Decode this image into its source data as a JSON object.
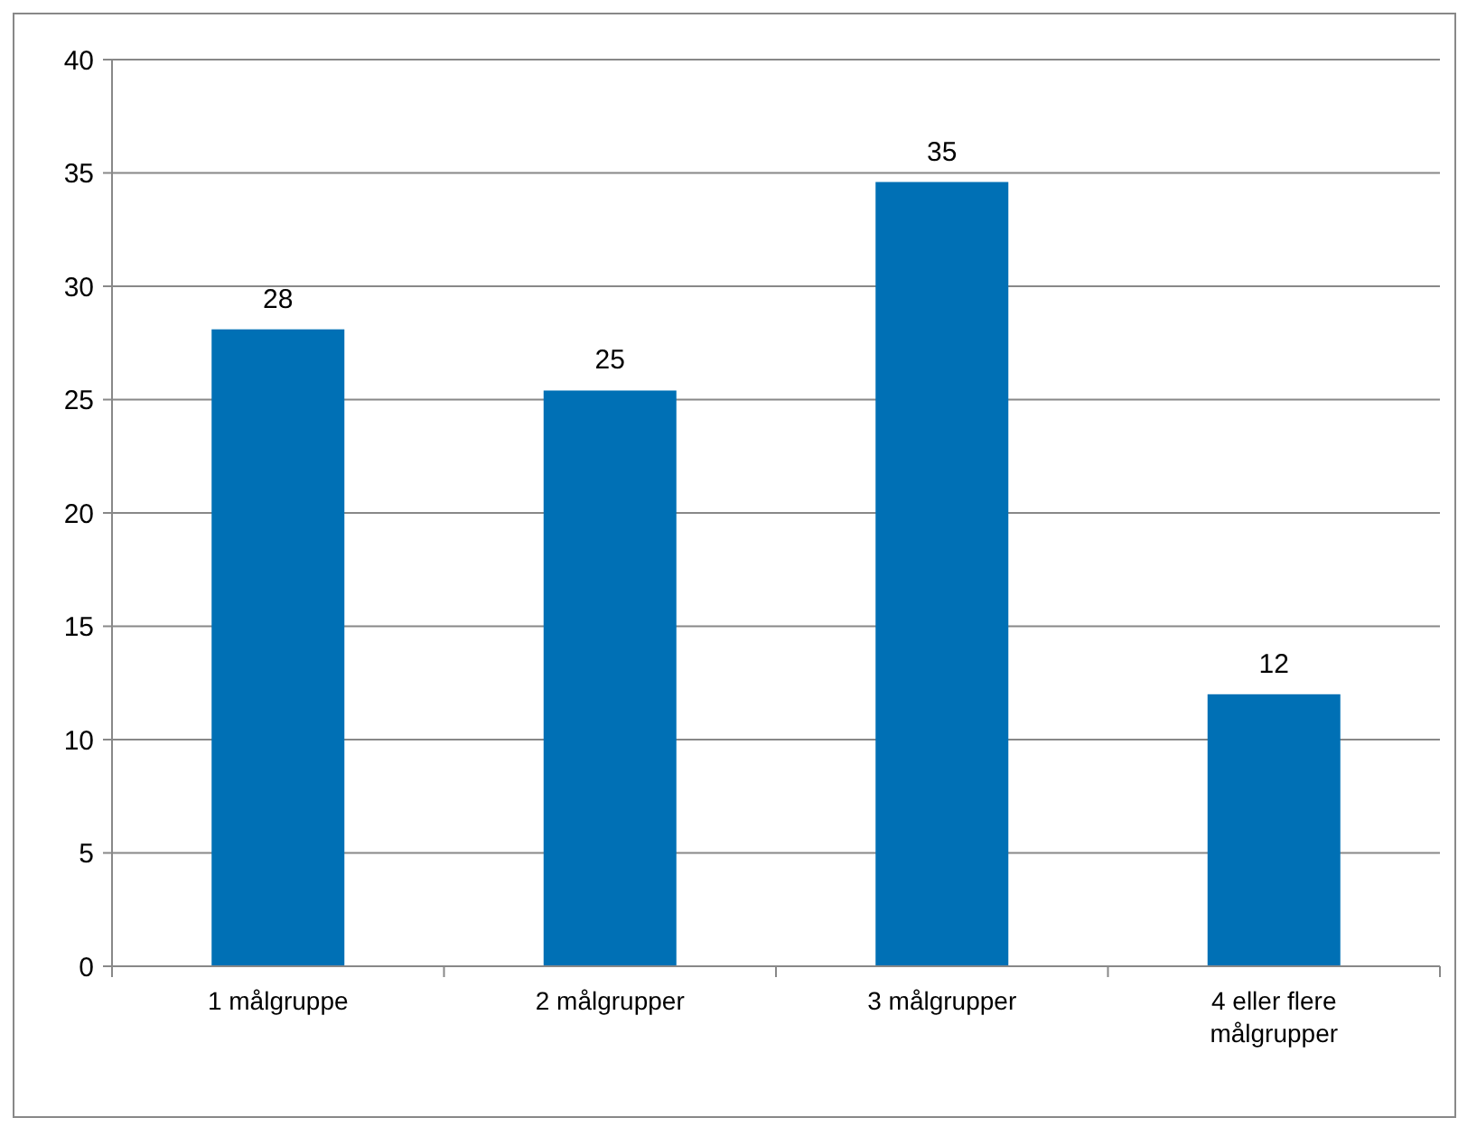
{
  "chart_data": {
    "type": "bar",
    "categories": [
      "1 målgruppe",
      "2 målgrupper",
      "3 målgrupper",
      "4 eller flere målgrupper"
    ],
    "values": [
      28.1,
      25.4,
      34.6,
      12
    ],
    "value_labels": [
      "28",
      "25",
      "35",
      "12"
    ],
    "color": "#0070b5",
    "ylim": [
      0,
      40
    ],
    "yticks": [
      0,
      5,
      10,
      15,
      20,
      25,
      30,
      35,
      40
    ],
    "grid": "y"
  }
}
